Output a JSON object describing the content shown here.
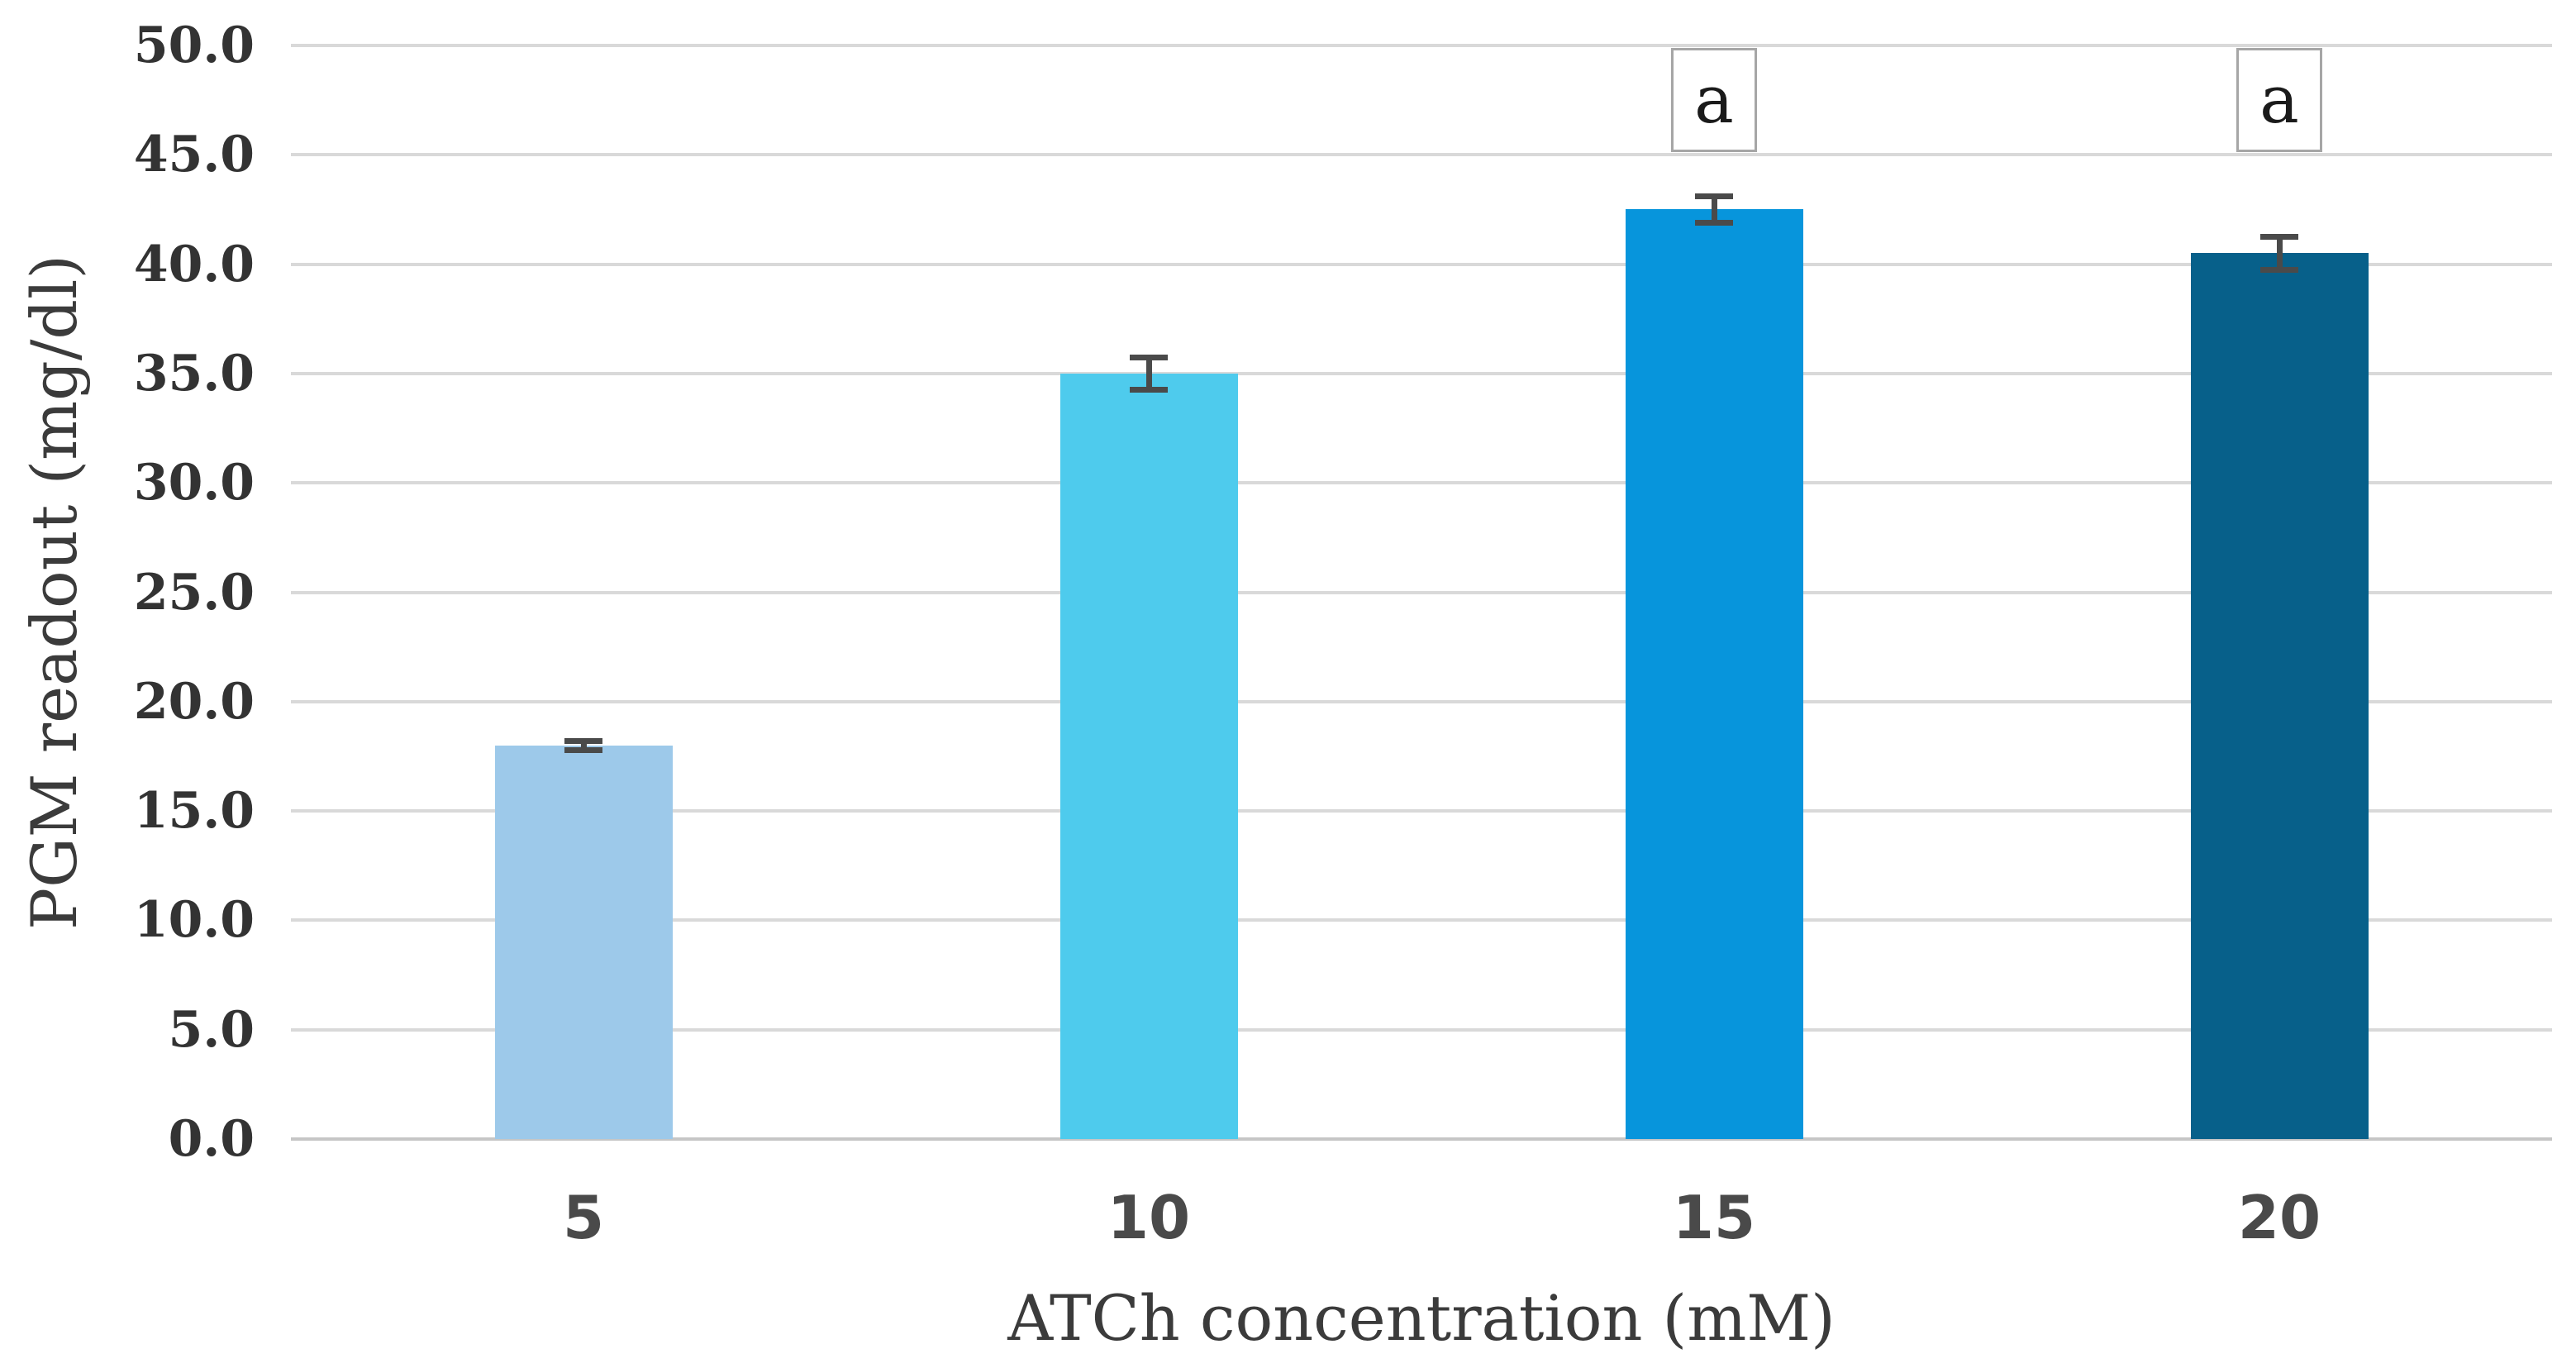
{
  "chart_data": {
    "type": "bar",
    "title": "",
    "xlabel": "ATCh concentration (mM)",
    "ylabel": "PGM readout (mg/dl)",
    "categories": [
      "5",
      "10",
      "15",
      "20"
    ],
    "series": [
      {
        "name": "PGM readout",
        "values": [
          18.0,
          35.0,
          42.5,
          40.5
        ],
        "errors": [
          0.2,
          0.75,
          0.6,
          0.75
        ]
      }
    ],
    "annotations": [
      {
        "category": "15",
        "label": "a"
      },
      {
        "category": "20",
        "label": "a"
      }
    ],
    "ylim": [
      0,
      50
    ],
    "ytick_step": 5,
    "ytick_labels": [
      "0.0",
      "5.0",
      "10.0",
      "15.0",
      "20.0",
      "25.0",
      "30.0",
      "35.0",
      "40.0",
      "45.0",
      "50.0"
    ],
    "grid": true,
    "legend": "none",
    "colors": {
      "bars": [
        "#9DC9EA",
        "#4ECBED",
        "#0795DC",
        "#07608A"
      ],
      "gridline": "#D9D9D9",
      "axis_line": "#C6C6C6",
      "error_bar": "#4A4A4A",
      "annotation_border": "#A6A6A6",
      "tick_text": "#333333"
    }
  }
}
